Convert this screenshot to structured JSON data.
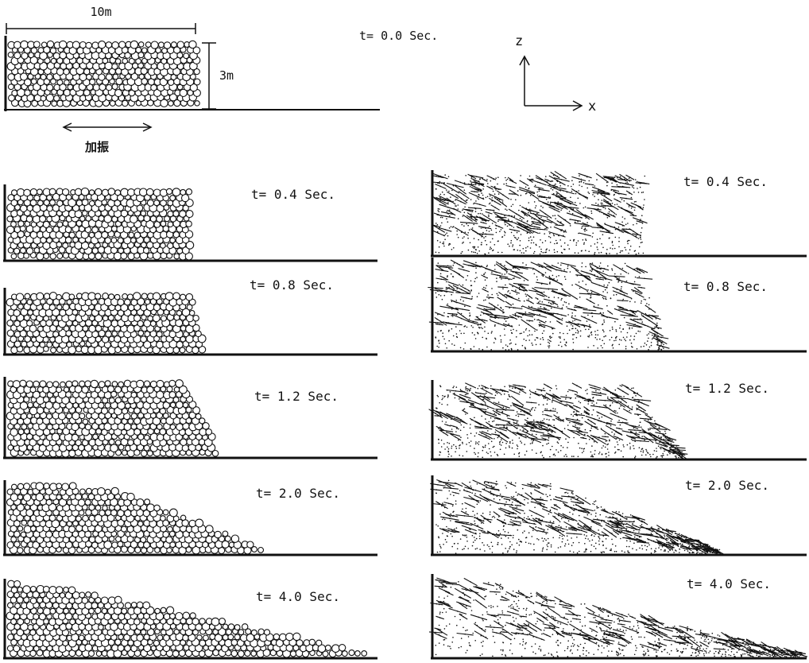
{
  "dim_width": "10m",
  "dim_height": "3m",
  "excitation": "加振",
  "axis_z": "z",
  "axis_x": "x",
  "initial_time": "t= 0.0 Sec.",
  "left_panels": [
    {
      "time": "t= 0.4 Sec.",
      "extent": 0.5,
      "slope": 0.0
    },
    {
      "time": "t= 0.8 Sec.",
      "extent": 0.54,
      "slope": 0.08
    },
    {
      "time": "t= 1.2 Sec.",
      "extent": 0.58,
      "slope": 0.18
    },
    {
      "time": "t= 2.0 Sec.",
      "extent": 0.7,
      "slope": 0.6
    },
    {
      "time": "t= 4.0 Sec.",
      "extent": 0.98,
      "slope": 0.85
    }
  ],
  "right_panels": [
    {
      "time": "t= 0.4 Sec.",
      "extent": 0.56,
      "slope": 0.0
    },
    {
      "time": "t= 0.8 Sec.",
      "extent": 0.61,
      "slope": 0.1
    },
    {
      "time": "t= 1.2 Sec.",
      "extent": 0.66,
      "slope": 0.2
    },
    {
      "time": "t= 2.0 Sec.",
      "extent": 0.76,
      "slope": 0.6
    },
    {
      "time": "t= 4.0 Sec.",
      "extent": 0.98,
      "slope": 0.85
    }
  ],
  "colors": {
    "ink": "#111111",
    "background": "#ffffff"
  }
}
